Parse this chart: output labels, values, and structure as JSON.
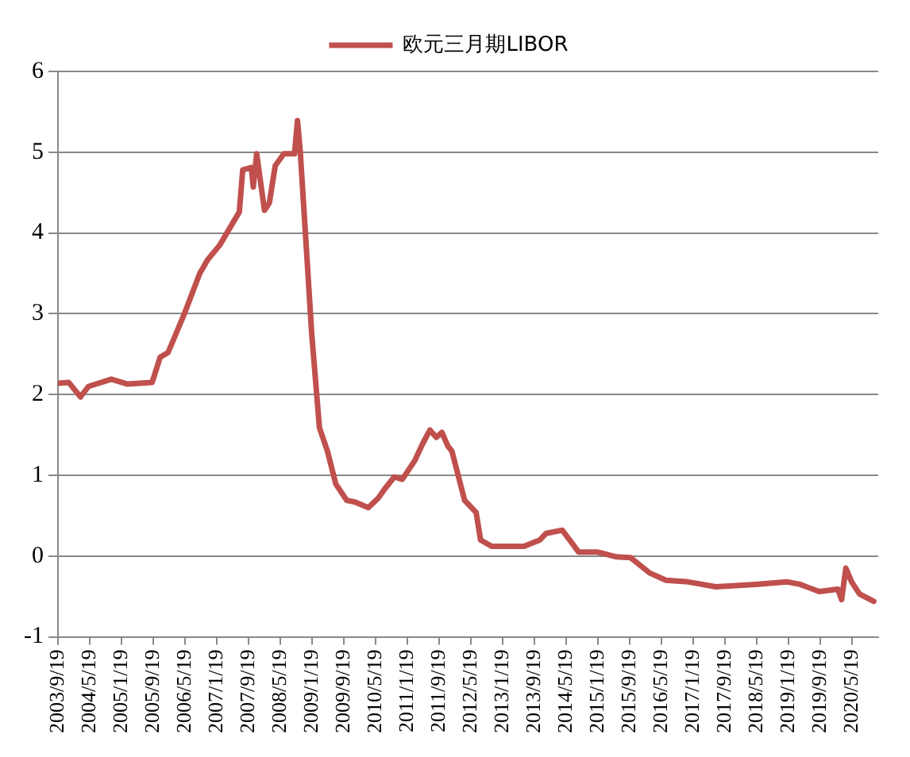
{
  "chart_data": {
    "type": "line",
    "x": [
      "2003-09-19",
      "2003-12-10",
      "2004-03-10",
      "2004-05-10",
      "2004-11-01",
      "2005-03-01",
      "2005-09-10",
      "2005-11-10",
      "2006-01-10",
      "2006-05-10",
      "2006-09-10",
      "2006-11-10",
      "2007-02-10",
      "2007-07-10",
      "2007-08-05",
      "2007-10-10",
      "2007-10-25",
      "2007-11-20",
      "2008-01-19",
      "2008-02-25",
      "2008-04-10",
      "2008-06-15",
      "2008-09-05",
      "2008-09-28",
      "2008-10-19",
      "2008-12-01",
      "2009-01-15",
      "2009-03-15",
      "2009-05-15",
      "2009-07-19",
      "2009-10-10",
      "2009-12-10",
      "2010-03-25",
      "2010-06-10",
      "2010-07-28",
      "2010-10-10",
      "2010-12-10",
      "2011-03-15",
      "2011-05-15",
      "2011-07-10",
      "2011-08-28",
      "2011-10-10",
      "2011-11-25",
      "2011-12-25",
      "2012-04-01",
      "2012-06-28",
      "2012-08-01",
      "2012-10-25",
      "2013-06-30",
      "2013-10-30",
      "2013-12-15",
      "2014-04-19",
      "2014-06-19",
      "2014-08-22",
      "2015-01-10",
      "2015-06-10",
      "2015-09-25",
      "2016-02-19",
      "2016-06-22",
      "2016-12-10",
      "2017-07-10",
      "2018-05-10",
      "2019-01-10",
      "2019-04-15",
      "2019-09-10",
      "2020-01-30",
      "2020-02-28",
      "2020-04-01",
      "2020-05-15",
      "2020-07-15",
      "2020-11-01"
    ],
    "series": [
      {
        "name": "欧元三月期LIBOR",
        "color": "#c0504d",
        "values": [
          2.14,
          2.15,
          1.97,
          2.1,
          2.19,
          2.13,
          2.15,
          2.46,
          2.52,
          2.98,
          3.5,
          3.67,
          3.85,
          4.26,
          4.78,
          4.81,
          4.57,
          4.98,
          4.28,
          4.37,
          4.83,
          4.98,
          4.98,
          5.39,
          5.01,
          3.91,
          2.75,
          1.59,
          1.3,
          0.89,
          0.69,
          0.67,
          0.6,
          0.72,
          0.83,
          0.98,
          0.95,
          1.18,
          1.39,
          1.56,
          1.47,
          1.53,
          1.36,
          1.3,
          0.69,
          0.54,
          0.2,
          0.12,
          0.12,
          0.2,
          0.28,
          0.32,
          0.19,
          0.05,
          0.05,
          -0.01,
          -0.02,
          -0.21,
          -0.3,
          -0.32,
          -0.38,
          -0.35,
          -0.32,
          -0.35,
          -0.44,
          -0.41,
          -0.54,
          -0.15,
          -0.32,
          -0.47,
          -0.56
        ]
      }
    ],
    "xlim": [
      "2003-09-19",
      "2020-12-05"
    ],
    "xticks": [
      {
        "value": "2003-09-19",
        "label": "2003/9/19"
      },
      {
        "value": "2004-05-19",
        "label": "2004/5/19"
      },
      {
        "value": "2005-01-19",
        "label": "2005/1/19"
      },
      {
        "value": "2005-09-19",
        "label": "2005/9/19"
      },
      {
        "value": "2006-05-19",
        "label": "2006/5/19"
      },
      {
        "value": "2007-01-19",
        "label": "2007/1/19"
      },
      {
        "value": "2007-09-19",
        "label": "2007/9/19"
      },
      {
        "value": "2008-05-19",
        "label": "2008/5/19"
      },
      {
        "value": "2009-01-19",
        "label": "2009/1/19"
      },
      {
        "value": "2009-09-19",
        "label": "2009/9/19"
      },
      {
        "value": "2010-05-19",
        "label": "2010/5/19"
      },
      {
        "value": "2011-01-19",
        "label": "2011/1/19"
      },
      {
        "value": "2011-09-19",
        "label": "2011/9/19"
      },
      {
        "value": "2012-05-19",
        "label": "2012/5/19"
      },
      {
        "value": "2013-01-19",
        "label": "2013/1/19"
      },
      {
        "value": "2013-09-19",
        "label": "2013/9/19"
      },
      {
        "value": "2014-05-19",
        "label": "2014/5/19"
      },
      {
        "value": "2015-01-19",
        "label": "2015/1/19"
      },
      {
        "value": "2015-09-19",
        "label": "2015/9/19"
      },
      {
        "value": "2016-05-19",
        "label": "2016/5/19"
      },
      {
        "value": "2017-01-19",
        "label": "2017/1/19"
      },
      {
        "value": "2017-09-19",
        "label": "2017/9/19"
      },
      {
        "value": "2018-05-19",
        "label": "2018/5/19"
      },
      {
        "value": "2019-01-19",
        "label": "2019/1/19"
      },
      {
        "value": "2019-09-19",
        "label": "2019/9/19"
      },
      {
        "value": "2020-05-19",
        "label": "2020/5/19"
      }
    ],
    "ylim": [
      -1,
      6
    ],
    "yticks": [
      -1,
      0,
      1,
      2,
      3,
      4,
      5,
      6
    ],
    "grid": "y",
    "legend": "top",
    "marker": "none",
    "line_style": "solid"
  }
}
